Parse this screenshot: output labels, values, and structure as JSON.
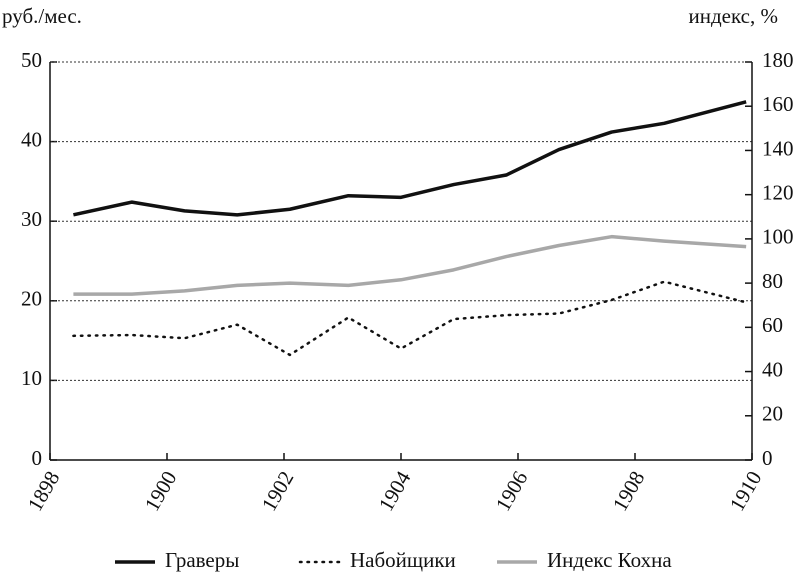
{
  "chart_data": {
    "type": "line",
    "y_label": "руб./мес.",
    "y2_label": "индекс, %",
    "x": [
      1898.4,
      1899.4,
      1900.3,
      1901.2,
      1902.1,
      1903.1,
      1904.0,
      1904.9,
      1905.8,
      1906.7,
      1907.6,
      1908.5,
      1909.9
    ],
    "series": [
      {
        "name": "Граверы",
        "color": "#111111",
        "style": "solid",
        "values": [
          30.8,
          32.4,
          31.3,
          30.8,
          31.5,
          33.2,
          33.0,
          34.6,
          35.8,
          39.0,
          41.2,
          42.3,
          45.0
        ]
      },
      {
        "name": "Набойщики",
        "color": "#111111",
        "style": "dotted",
        "values": [
          15.6,
          15.7,
          15.3,
          17.0,
          13.2,
          17.9,
          14.0,
          17.7,
          18.2,
          18.4,
          20.1,
          22.4,
          19.8
        ]
      },
      {
        "name": "Индекс Кохна",
        "color": "#a8a8a8",
        "style": "solid",
        "axis": "y2",
        "values": [
          75,
          75,
          76.5,
          79,
          80,
          79,
          81.5,
          86,
          92,
          97,
          101,
          99,
          96.5
        ]
      }
    ],
    "xlim": [
      1898,
      1910
    ],
    "xticks": [
      1898,
      1900,
      1902,
      1904,
      1906,
      1908,
      1910
    ],
    "ylim": [
      0,
      50
    ],
    "yticks": [
      0,
      10,
      20,
      30,
      40,
      50
    ],
    "y2lim": [
      0,
      180
    ],
    "y2ticks": [
      0,
      20,
      40,
      60,
      80,
      100,
      120,
      140,
      160,
      180
    ],
    "grid": true,
    "legend": "bottom"
  }
}
